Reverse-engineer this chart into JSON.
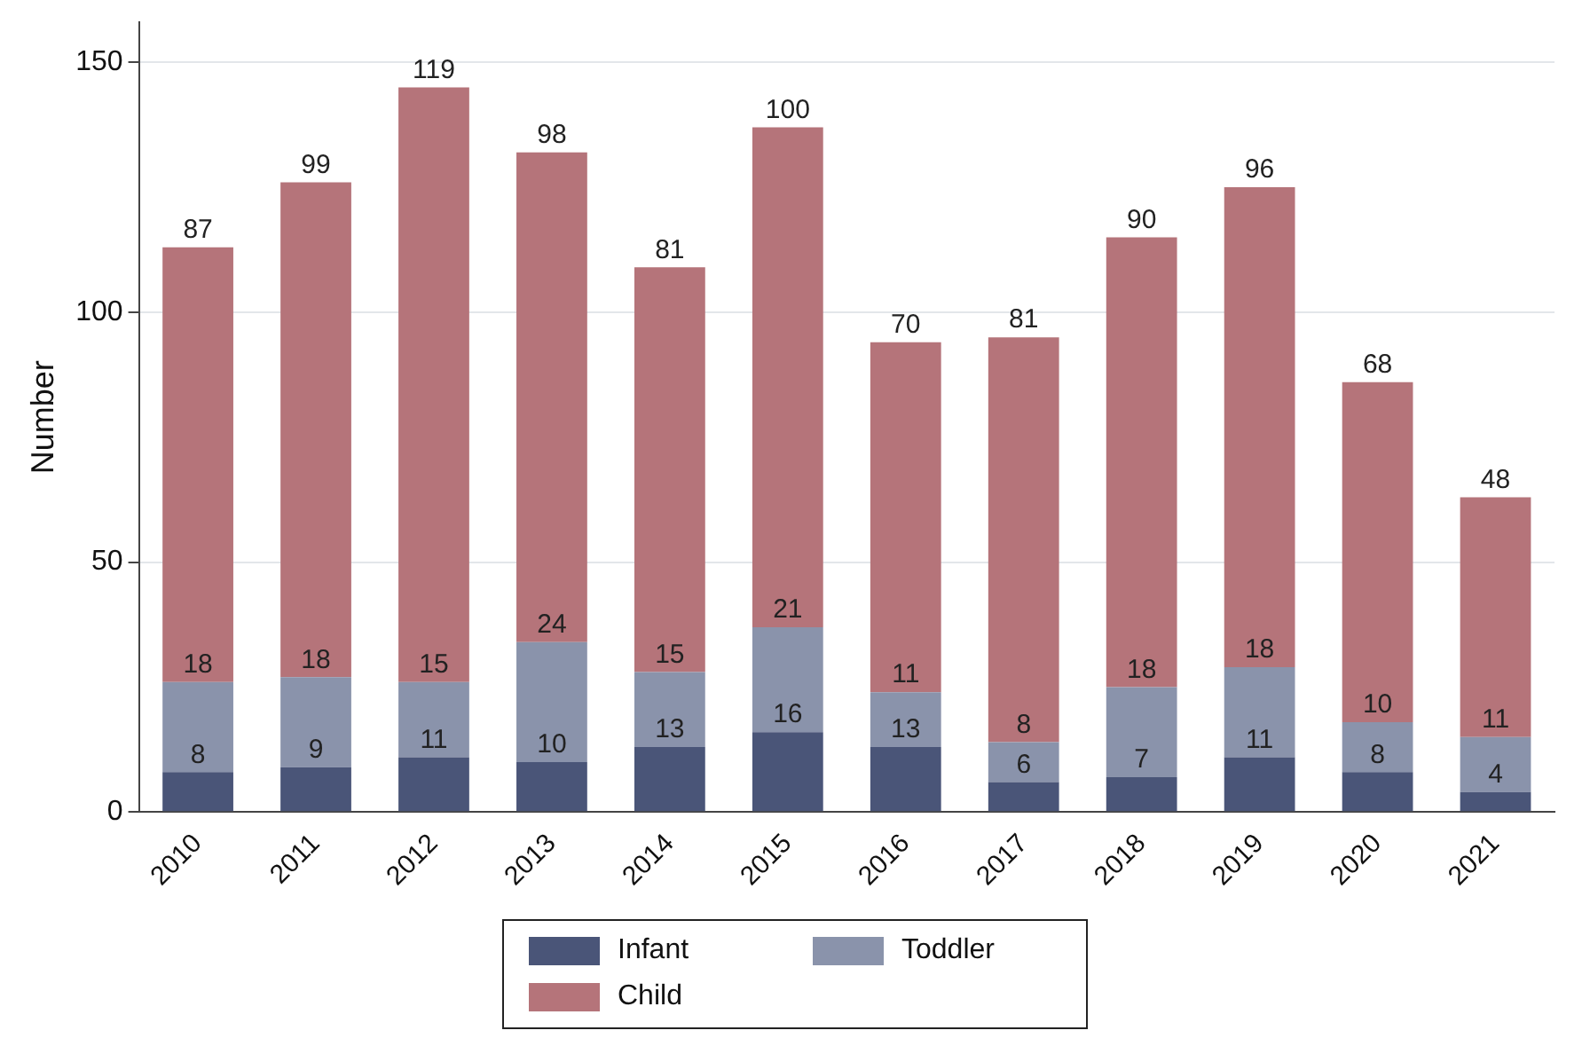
{
  "chart_data": {
    "type": "bar",
    "stacked": true,
    "ylabel": "Number",
    "categories": [
      "2010",
      "2011",
      "2012",
      "2013",
      "2014",
      "2015",
      "2016",
      "2017",
      "2018",
      "2019",
      "2020",
      "2021"
    ],
    "series": [
      {
        "name": "Infant",
        "color": "#4a5578",
        "values": [
          8,
          9,
          11,
          10,
          13,
          16,
          13,
          6,
          7,
          11,
          8,
          4
        ]
      },
      {
        "name": "Toddler",
        "color": "#8a93ab",
        "values": [
          18,
          18,
          15,
          24,
          15,
          21,
          11,
          8,
          18,
          18,
          10,
          11
        ]
      },
      {
        "name": "Child",
        "color": "#b5747a",
        "values": [
          87,
          99,
          119,
          98,
          81,
          100,
          70,
          81,
          90,
          96,
          68,
          48
        ]
      }
    ],
    "ylim": [
      0,
      158
    ],
    "yticks": [
      0,
      50,
      100,
      150
    ],
    "grid": "y",
    "legend": "bottom",
    "data_labels": true
  }
}
